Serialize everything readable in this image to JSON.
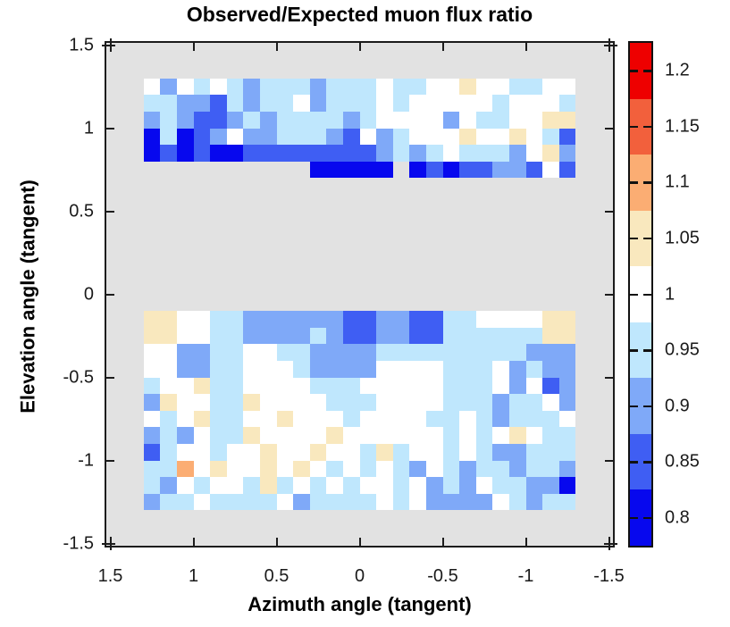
{
  "title": "Observed/Expected muon flux ratio",
  "axes": {
    "x_label": "Azimuth angle (tangent)",
    "y_label": "Elevation angle (tangent)",
    "x_tick_labels": [
      "1.5",
      "1",
      "0.5",
      "0",
      "-0.5",
      "-1",
      "-1.5"
    ],
    "x_tick_values": [
      1.5,
      1,
      0.5,
      0,
      -0.5,
      -1,
      -1.5
    ],
    "y_tick_labels": [
      "1.5",
      "1",
      "0.5",
      "0",
      "-0.5",
      "-1",
      "-1.5"
    ],
    "y_tick_values": [
      1.5,
      1,
      0.5,
      0,
      -0.5,
      -1,
      -1.5
    ],
    "x_axis_reversed": true,
    "x_range": [
      1.53,
      -1.53
    ],
    "y_range": [
      -1.53,
      1.53
    ]
  },
  "colorbar": {
    "tick_labels": [
      "1.2",
      "1.15",
      "1.1",
      "1.05",
      "1",
      "0.95",
      "0.9",
      "0.85",
      "0.8"
    ],
    "tick_values": [
      1.2,
      1.15,
      1.1,
      1.05,
      1,
      0.95,
      0.9,
      0.85,
      0.8
    ],
    "range": [
      0.775,
      1.225
    ],
    "bands": [
      {
        "value_range": [
          1.175,
          1.225
        ],
        "color": "#ee0000"
      },
      {
        "value_range": [
          1.125,
          1.175
        ],
        "color": "#f2603c"
      },
      {
        "value_range": [
          1.075,
          1.125
        ],
        "color": "#fbad73"
      },
      {
        "value_range": [
          1.025,
          1.075
        ],
        "color": "#f9e8be"
      },
      {
        "value_range": [
          0.975,
          1.025
        ],
        "color": "#ffffff"
      },
      {
        "value_range": [
          0.925,
          0.975
        ],
        "color": "#bfe7fd"
      },
      {
        "value_range": [
          0.875,
          0.925
        ],
        "color": "#7fa9f8"
      },
      {
        "value_range": [
          0.825,
          0.875
        ],
        "color": "#3f5ef3"
      },
      {
        "value_range": [
          0.775,
          0.825
        ],
        "color": "#0708ee"
      }
    ]
  },
  "chart_data": {
    "type": "heatmap",
    "title": "Observed/Expected muon flux ratio",
    "xlabel": "Azimuth angle (tangent)",
    "ylabel": "Elevation angle (tangent)",
    "cell_size_tangent": 0.1,
    "background_no_data_color": "#e2e2e2",
    "code_values": {
      "4": 0.8,
      "3": 0.85,
      "2": 0.9,
      "1": 0.95,
      "w": 1.0,
      "a": 1.05,
      "b": 1.1,
      ".": null
    },
    "code_colors": {
      "4": "#0708ee",
      "3": "#3f5ef3",
      "2": "#7fa9f8",
      "1": "#bfe7fd",
      "w": "#ffffff",
      "a": "#f9e8be",
      "b": "#fbad73"
    },
    "azimuth_centers": [
      1.25,
      1.15,
      1.05,
      0.95,
      0.85,
      0.75,
      0.65,
      0.55,
      0.45,
      0.35,
      0.25,
      0.15,
      0.05,
      -0.05,
      -0.15,
      -0.25,
      -0.35,
      -0.45,
      -0.55,
      -0.65,
      -0.75,
      -0.85,
      -0.95,
      -1.05,
      -1.15,
      -1.25
    ],
    "grid": [
      {
        "elev": 1.25,
        "cells": "w2w1w121112111w11wwaww11ww"
      },
      {
        "elev": 1.15,
        "cells": "112231211w2111w1wwwww1www1"
      },
      {
        "elev": 1.05,
        "cells": "21233212111121wwww2w11wwaa"
      },
      {
        "elev": 0.95,
        "cells": "41432w2211123w21wwwawwaw13"
      },
      {
        "elev": 0.85,
        "cells": "434344333333332121w1112wa2"
      },
      {
        "elev": 0.75,
        "cells": "..........44444.43433223w3"
      },
      {
        "elev": -0.15,
        "cells": "aaww1122222233223311wwwwaa"
      },
      {
        "elev": -0.25,
        "cells": "aaww11222212332233111111aa"
      },
      {
        "elev": -0.35,
        "cells": "ww2211ww112222111111111222"
      },
      {
        "elev": -0.45,
        "cells": "ww2211www12222wwww111w2122"
      },
      {
        "elev": -0.55,
        "cells": "1wwa11wwww111wwwww111w2w32"
      },
      {
        "elev": -0.65,
        "cells": "2aww11awwww111wwww111211w2"
      },
      {
        "elev": -0.75,
        "cells": "w1wa11wwawww1wwww11w12111w"
      },
      {
        "elev": -0.85,
        "cells": "212w11awwwwawwwwww1w1waw11"
      },
      {
        "elev": -0.95,
        "cells": "31ww1wwawwaww1a1ww1w122111"
      },
      {
        "elev": -1.05,
        "cells": "11bwawwawaw1w1w12w12112112"
      },
      {
        "elev": -1.15,
        "cells": "12w1ww1a1w1w1ww1w212w11224"
      },
      {
        "elev": -1.25,
        "cells": "211w1111w21111w1w2222w1211"
      }
    ]
  }
}
